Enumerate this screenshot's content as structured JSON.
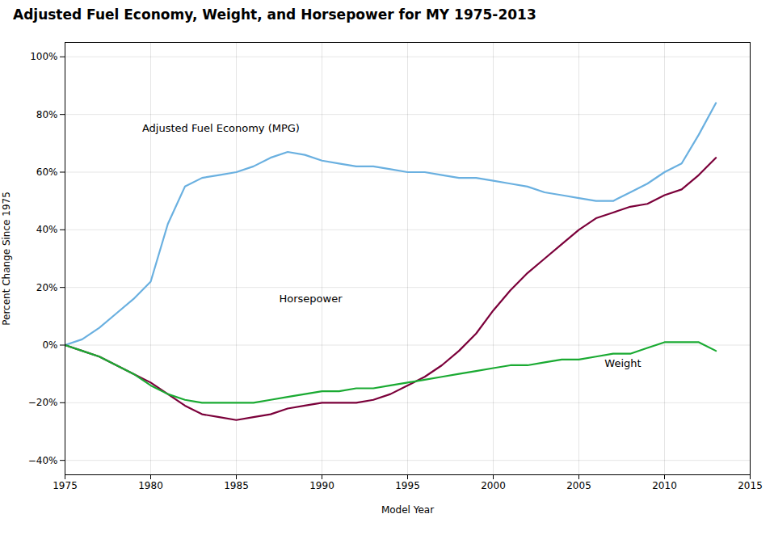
{
  "chart_data": {
    "type": "line",
    "title": "Adjusted Fuel Economy, Weight, and Horsepower for MY 1975-2013",
    "xlabel": "Model Year",
    "ylabel": "Percent Change Since 1975",
    "x": [
      1975,
      1976,
      1977,
      1978,
      1979,
      1980,
      1981,
      1982,
      1983,
      1984,
      1985,
      1986,
      1987,
      1988,
      1989,
      1990,
      1991,
      1992,
      1993,
      1994,
      1995,
      1996,
      1997,
      1998,
      1999,
      2000,
      2001,
      2002,
      2003,
      2004,
      2005,
      2006,
      2007,
      2008,
      2009,
      2010,
      2011,
      2012,
      2013
    ],
    "series": [
      {
        "name": "Adjusted Fuel Economy (MPG)",
        "color": "#6ab0e0",
        "values": [
          0.0,
          0.02,
          0.06,
          0.11,
          0.16,
          0.22,
          0.42,
          0.55,
          0.58,
          0.59,
          0.6,
          0.62,
          0.65,
          0.67,
          0.66,
          0.64,
          0.63,
          0.62,
          0.62,
          0.61,
          0.6,
          0.6,
          0.59,
          0.58,
          0.58,
          0.57,
          0.56,
          0.55,
          0.53,
          0.52,
          0.51,
          0.5,
          0.5,
          0.53,
          0.56,
          0.6,
          0.63,
          0.73,
          0.84
        ]
      },
      {
        "name": "Horsepower",
        "color": "#7b003a",
        "values": [
          0.0,
          -0.02,
          -0.04,
          -0.07,
          -0.1,
          -0.13,
          -0.17,
          -0.21,
          -0.24,
          -0.25,
          -0.26,
          -0.25,
          -0.24,
          -0.22,
          -0.21,
          -0.2,
          -0.2,
          -0.2,
          -0.19,
          -0.17,
          -0.14,
          -0.11,
          -0.07,
          -0.02,
          0.04,
          0.12,
          0.19,
          0.25,
          0.3,
          0.35,
          0.4,
          0.44,
          0.46,
          0.48,
          0.49,
          0.52,
          0.54,
          0.59,
          0.65
        ]
      },
      {
        "name": "Weight",
        "color": "#1aaa32",
        "values": [
          0.0,
          -0.02,
          -0.04,
          -0.07,
          -0.1,
          -0.14,
          -0.17,
          -0.19,
          -0.2,
          -0.2,
          -0.2,
          -0.2,
          -0.19,
          -0.18,
          -0.17,
          -0.16,
          -0.16,
          -0.15,
          -0.15,
          -0.14,
          -0.13,
          -0.12,
          -0.11,
          -0.1,
          -0.09,
          -0.08,
          -0.07,
          -0.07,
          -0.06,
          -0.05,
          -0.05,
          -0.04,
          -0.03,
          -0.03,
          -0.01,
          0.01,
          0.01,
          0.01,
          -0.02
        ]
      }
    ],
    "annotations": [
      {
        "text": "Adjusted Fuel Economy (MPG)",
        "x": 1979.5,
        "y": 0.74
      },
      {
        "text": "Horsepower",
        "x": 1987.5,
        "y": 0.15
      },
      {
        "text": "Weight",
        "x": 2006.5,
        "y": -0.075
      }
    ],
    "xlim": [
      1975,
      2015
    ],
    "xticks": [
      1975,
      1980,
      1985,
      1990,
      1995,
      2000,
      2005,
      2010,
      2015
    ],
    "ylim": [
      -0.45,
      1.05
    ],
    "yticks": [
      {
        "value": -0.4,
        "label": "−40%"
      },
      {
        "value": -0.2,
        "label": "−20%"
      },
      {
        "value": 0.0,
        "label": "0%"
      },
      {
        "value": 0.2,
        "label": "20%"
      },
      {
        "value": 0.4,
        "label": "40%"
      },
      {
        "value": 0.6,
        "label": "60%"
      },
      {
        "value": 0.8,
        "label": "80%"
      },
      {
        "value": 1.0,
        "label": "100%"
      }
    ],
    "grid": true
  }
}
